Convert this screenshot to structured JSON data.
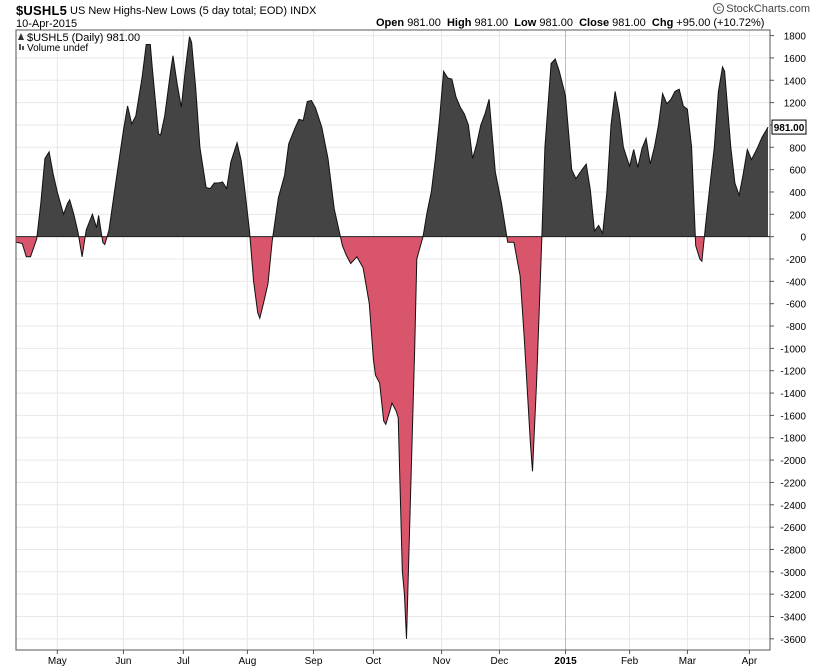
{
  "header": {
    "symbol": "$USHL5",
    "description": "US New Highs-New Lows (5 day total; EOD)",
    "exchange": "INDX",
    "date": "10-Apr-2015",
    "open_label": "Open",
    "open_value": "981.00",
    "high_label": "High",
    "high_value": "981.00",
    "low_label": "Low",
    "low_value": "981.00",
    "close_label": "Close",
    "close_value": "981.00",
    "chg_label": "Chg",
    "chg_value": "+95.00 (+10.72%)",
    "watermark": "StockCharts.com"
  },
  "legend": {
    "series_label": "$USHL5 (Daily) 981.00",
    "volume_label": "Volume undef"
  },
  "colors": {
    "positive": "#444444",
    "negative": "#d9556b",
    "line": "#111111",
    "grid": "#e8e8e8"
  },
  "chart_data": {
    "type": "area",
    "title": "$USHL5 US New Highs-New Lows (5 day total; EOD)",
    "ylim": [
      -3700,
      1850
    ],
    "y_ticks": [
      1800,
      1600,
      1400,
      1200,
      1000,
      800,
      600,
      400,
      200,
      0,
      -200,
      -400,
      -600,
      -800,
      -1000,
      -1200,
      -1400,
      -1600,
      -1800,
      -2000,
      -2200,
      -2400,
      -2600,
      -2800,
      -3000,
      -3200,
      -3400,
      -3600
    ],
    "x_range": [
      "2014-04-11",
      "2015-04-10"
    ],
    "x_ticks": [
      {
        "date": "2014-05-01",
        "label": "May"
      },
      {
        "date": "2014-06-02",
        "label": "Jun"
      },
      {
        "date": "2014-07-01",
        "label": "Jul"
      },
      {
        "date": "2014-08-01",
        "label": "Aug"
      },
      {
        "date": "2014-09-02",
        "label": "Sep"
      },
      {
        "date": "2014-10-01",
        "label": "Oct"
      },
      {
        "date": "2014-11-03",
        "label": "Nov"
      },
      {
        "date": "2014-12-01",
        "label": "Dec"
      },
      {
        "date": "2015-01-02",
        "label": "2015"
      },
      {
        "date": "2015-02-02",
        "label": "Feb"
      },
      {
        "date": "2015-03-02",
        "label": "Mar"
      },
      {
        "date": "2015-04-01",
        "label": "Apr"
      }
    ],
    "last_value_label": "981.00",
    "series": [
      {
        "name": "$USHL5 (Daily)",
        "points": [
          [
            "2014-04-11",
            -50
          ],
          [
            "2014-04-14",
            -60
          ],
          [
            "2014-04-16",
            -180
          ],
          [
            "2014-04-18",
            -180
          ],
          [
            "2014-04-21",
            -20
          ],
          [
            "2014-04-23",
            300
          ],
          [
            "2014-04-25",
            700
          ],
          [
            "2014-04-27",
            760
          ],
          [
            "2014-04-29",
            560
          ],
          [
            "2014-05-01",
            400
          ],
          [
            "2014-05-04",
            200
          ],
          [
            "2014-05-06",
            300
          ],
          [
            "2014-05-07",
            330
          ],
          [
            "2014-05-09",
            200
          ],
          [
            "2014-05-11",
            40
          ],
          [
            "2014-05-13",
            -180
          ],
          [
            "2014-05-15",
            60
          ],
          [
            "2014-05-18",
            200
          ],
          [
            "2014-05-20",
            80
          ],
          [
            "2014-05-21",
            190
          ],
          [
            "2014-05-23",
            -50
          ],
          [
            "2014-05-24",
            -70
          ],
          [
            "2014-05-26",
            60
          ],
          [
            "2014-05-29",
            450
          ],
          [
            "2014-06-02",
            950
          ],
          [
            "2014-06-04",
            1170
          ],
          [
            "2014-06-06",
            1010
          ],
          [
            "2014-06-08",
            1080
          ],
          [
            "2014-06-11",
            1420
          ],
          [
            "2014-06-13",
            1720
          ],
          [
            "2014-06-15",
            1720
          ],
          [
            "2014-06-16",
            1500
          ],
          [
            "2014-06-19",
            920
          ],
          [
            "2014-06-20",
            910
          ],
          [
            "2014-06-22",
            1080
          ],
          [
            "2014-06-25",
            1500
          ],
          [
            "2014-06-26",
            1620
          ],
          [
            "2014-06-28",
            1370
          ],
          [
            "2014-06-30",
            1160
          ],
          [
            "2014-07-02",
            1500
          ],
          [
            "2014-07-04",
            1790
          ],
          [
            "2014-07-05",
            1740
          ],
          [
            "2014-07-07",
            1330
          ],
          [
            "2014-07-09",
            800
          ],
          [
            "2014-07-12",
            440
          ],
          [
            "2014-07-14",
            430
          ],
          [
            "2014-07-16",
            480
          ],
          [
            "2014-07-18",
            480
          ],
          [
            "2014-07-20",
            490
          ],
          [
            "2014-07-22",
            430
          ],
          [
            "2014-07-24",
            670
          ],
          [
            "2014-07-27",
            840
          ],
          [
            "2014-07-29",
            680
          ],
          [
            "2014-07-31",
            380
          ],
          [
            "2014-08-02",
            50
          ],
          [
            "2014-08-04",
            -400
          ],
          [
            "2014-08-06",
            -680
          ],
          [
            "2014-08-07",
            -730
          ],
          [
            "2014-08-09",
            -580
          ],
          [
            "2014-08-11",
            -420
          ],
          [
            "2014-08-13",
            -40
          ],
          [
            "2014-08-16",
            350
          ],
          [
            "2014-08-19",
            550
          ],
          [
            "2014-08-21",
            830
          ],
          [
            "2014-08-24",
            970
          ],
          [
            "2014-08-26",
            1050
          ],
          [
            "2014-08-28",
            1040
          ],
          [
            "2014-08-30",
            1210
          ],
          [
            "2014-09-01",
            1220
          ],
          [
            "2014-09-03",
            1150
          ],
          [
            "2014-09-06",
            980
          ],
          [
            "2014-09-09",
            700
          ],
          [
            "2014-09-12",
            250
          ],
          [
            "2014-09-16",
            -80
          ],
          [
            "2014-09-18",
            -170
          ],
          [
            "2014-09-20",
            -240
          ],
          [
            "2014-09-23",
            -180
          ],
          [
            "2014-09-26",
            -280
          ],
          [
            "2014-09-29",
            -600
          ],
          [
            "2014-10-01",
            -1100
          ],
          [
            "2014-10-02",
            -1240
          ],
          [
            "2014-10-04",
            -1310
          ],
          [
            "2014-10-06",
            -1650
          ],
          [
            "2014-10-07",
            -1680
          ],
          [
            "2014-10-09",
            -1560
          ],
          [
            "2014-10-10",
            -1490
          ],
          [
            "2014-10-12",
            -1560
          ],
          [
            "2014-10-13",
            -1620
          ],
          [
            "2014-10-15",
            -2990
          ],
          [
            "2014-10-16",
            -3200
          ],
          [
            "2014-10-17",
            -3600
          ],
          [
            "2014-10-19",
            -2300
          ],
          [
            "2014-10-21",
            -1000
          ],
          [
            "2014-10-22",
            -200
          ],
          [
            "2014-10-25",
            0
          ],
          [
            "2014-10-27",
            220
          ],
          [
            "2014-10-29",
            400
          ],
          [
            "2014-10-31",
            700
          ],
          [
            "2014-11-02",
            1050
          ],
          [
            "2014-11-04",
            1480
          ],
          [
            "2014-11-06",
            1420
          ],
          [
            "2014-11-08",
            1410
          ],
          [
            "2014-11-10",
            1250
          ],
          [
            "2014-11-12",
            1160
          ],
          [
            "2014-11-14",
            1100
          ],
          [
            "2014-11-16",
            1000
          ],
          [
            "2014-11-18",
            700
          ],
          [
            "2014-11-20",
            830
          ],
          [
            "2014-11-22",
            1000
          ],
          [
            "2014-11-24",
            1100
          ],
          [
            "2014-11-26",
            1230
          ],
          [
            "2014-11-29",
            580
          ],
          [
            "2014-12-02",
            300
          ],
          [
            "2014-12-05",
            -50
          ],
          [
            "2014-12-08",
            -50
          ],
          [
            "2014-12-11",
            -350
          ],
          [
            "2014-12-13",
            -900
          ],
          [
            "2014-12-16",
            -1850
          ],
          [
            "2014-12-17",
            -2100
          ],
          [
            "2014-12-19",
            -1300
          ],
          [
            "2014-12-21",
            -300
          ],
          [
            "2014-12-23",
            800
          ],
          [
            "2014-12-26",
            1550
          ],
          [
            "2014-12-28",
            1590
          ],
          [
            "2014-12-30",
            1480
          ],
          [
            "2015-01-02",
            1260
          ],
          [
            "2015-01-05",
            600
          ],
          [
            "2015-01-07",
            520
          ],
          [
            "2015-01-10",
            600
          ],
          [
            "2015-01-12",
            650
          ],
          [
            "2015-01-14",
            420
          ],
          [
            "2015-01-16",
            50
          ],
          [
            "2015-01-18",
            100
          ],
          [
            "2015-01-20",
            30
          ],
          [
            "2015-01-22",
            400
          ],
          [
            "2015-01-24",
            1000
          ],
          [
            "2015-01-26",
            1300
          ],
          [
            "2015-01-28",
            1100
          ],
          [
            "2015-01-30",
            800
          ],
          [
            "2015-02-02",
            630
          ],
          [
            "2015-02-04",
            780
          ],
          [
            "2015-02-06",
            620
          ],
          [
            "2015-02-08",
            790
          ],
          [
            "2015-02-10",
            880
          ],
          [
            "2015-02-12",
            650
          ],
          [
            "2015-02-14",
            800
          ],
          [
            "2015-02-16",
            1000
          ],
          [
            "2015-02-18",
            1280
          ],
          [
            "2015-02-20",
            1190
          ],
          [
            "2015-02-22",
            1230
          ],
          [
            "2015-02-24",
            1300
          ],
          [
            "2015-02-26",
            1320
          ],
          [
            "2015-02-28",
            1170
          ],
          [
            "2015-03-02",
            1140
          ],
          [
            "2015-03-04",
            800
          ],
          [
            "2015-03-06",
            -80
          ],
          [
            "2015-03-08",
            -200
          ],
          [
            "2015-03-09",
            -220
          ],
          [
            "2015-03-11",
            140
          ],
          [
            "2015-03-13",
            480
          ],
          [
            "2015-03-15",
            800
          ],
          [
            "2015-03-17",
            1300
          ],
          [
            "2015-03-19",
            1520
          ],
          [
            "2015-03-20",
            1480
          ],
          [
            "2015-03-23",
            800
          ],
          [
            "2015-03-25",
            480
          ],
          [
            "2015-03-27",
            370
          ],
          [
            "2015-03-29",
            560
          ],
          [
            "2015-03-31",
            780
          ],
          [
            "2015-04-02",
            690
          ],
          [
            "2015-04-05",
            800
          ],
          [
            "2015-04-07",
            886
          ],
          [
            "2015-04-10",
            981
          ]
        ]
      }
    ]
  }
}
